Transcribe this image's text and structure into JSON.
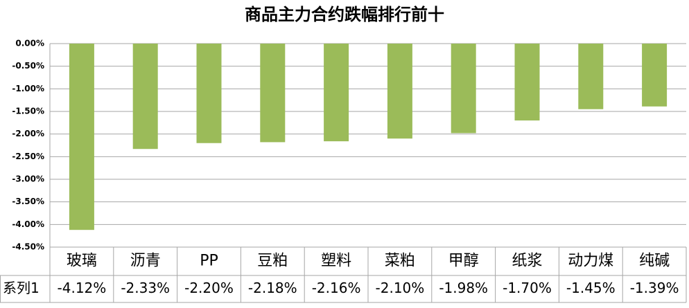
{
  "chart_data": {
    "type": "bar",
    "title": "商品主力合约跌幅排行前十",
    "categories": [
      "玻璃",
      "沥青",
      "PP",
      "豆粕",
      "塑料",
      "菜粕",
      "甲醇",
      "纸浆",
      "动力煤",
      "纯碱"
    ],
    "series": [
      {
        "name": "系列1",
        "color": "#9bbb59",
        "values": [
          -4.12,
          -2.33,
          -2.2,
          -2.18,
          -2.16,
          -2.1,
          -1.98,
          -1.7,
          -1.45,
          -1.39
        ],
        "value_labels": [
          "-4.12%",
          "-2.33%",
          "-2.20%",
          "-2.18%",
          "-2.16%",
          "-2.10%",
          "-1.98%",
          "-1.70%",
          "-1.45%",
          "-1.39%"
        ]
      }
    ],
    "ylim": [
      -4.5,
      0
    ],
    "yticks": [
      {
        "value": 0,
        "label": "0.00%"
      },
      {
        "value": -0.5,
        "label": "-0.50%"
      },
      {
        "value": -1,
        "label": "-1.00%"
      },
      {
        "value": -1.5,
        "label": "-1.50%"
      },
      {
        "value": -2,
        "label": "-2.00%"
      },
      {
        "value": -2.5,
        "label": "-2.50%"
      },
      {
        "value": -3,
        "label": "-3.00%"
      },
      {
        "value": -3.5,
        "label": "-3.50%"
      },
      {
        "value": -4,
        "label": "-4.00%"
      },
      {
        "value": -4.5,
        "label": "-4.50%"
      }
    ],
    "grid": true
  }
}
